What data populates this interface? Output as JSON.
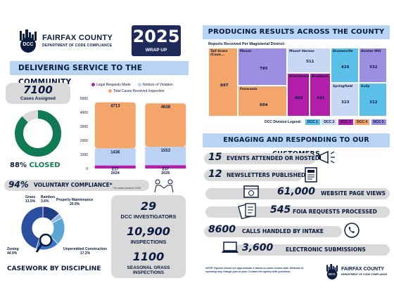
{
  "header": {
    "org_name": "FAIRFAX COUNTY",
    "org_sub": "DEPARTMENT OF CODE COMPLIANCE",
    "logo_text": "DCC",
    "year": "2025",
    "year_sub": "WRAP UP"
  },
  "left": {
    "banner_service": "DELIVERING SERVICE TO THE COMMUNITY",
    "cases_assigned_num": "7100",
    "cases_assigned_label": "Cases Assigned",
    "closed_pct": "88%",
    "closed_label": "CLOSED",
    "closed_fraction": 0.88,
    "voluntary_pct": "94%",
    "voluntary_label": "VOLUNTARY COMPLIANCE*",
    "voluntary_note": "* for cases closed in 2025",
    "casework_title": "CASEWORK BY DISCIPLINE",
    "investigators_num": "29",
    "investigators_label": "DCC INVESTIGATORS",
    "inspections_num": "10,900",
    "inspections_label": "INSPECTIONS",
    "seasonal_num": "1100",
    "seasonal_label": "SEASONAL GRASS INSPECTIONS"
  },
  "chart_data": [
    {
      "type": "bar",
      "categories": [
        "2024",
        "2025"
      ],
      "series": [
        {
          "name": "Legal Requests Made",
          "values": [
            217,
            237
          ],
          "color": "#b21ea8"
        },
        {
          "name": "Notices of Violation",
          "values": [
            1436,
            1553
          ],
          "color": "#bcd2f5"
        },
        {
          "name": "Total Cases Received Inspection",
          "values": [
            4713,
            4638
          ],
          "color": "#f4a56a"
        }
      ],
      "yticks": [
        "0",
        "1000",
        "2000",
        "3000",
        "4000",
        "5000"
      ],
      "ylim": [
        0,
        5000
      ]
    },
    {
      "type": "pie",
      "labels": [
        "Grass",
        "Bamboo",
        "Property Maintenance",
        "Unpermitted Construction",
        "Zoning"
      ],
      "percents": [
        "13.5%",
        "3.6%",
        "20.9%",
        "17.2%",
        "44.9%"
      ],
      "values": [
        13.5,
        3.6,
        20.9,
        17.2,
        44.9
      ],
      "colors": [
        "#1f3e86",
        "#8fb6e8",
        "#5aa7d6",
        "#3b74c4",
        "#2a4fa0"
      ]
    },
    {
      "type": "heatmap",
      "title": "Reports Received Per Magisterial District:",
      "cells": [
        {
          "name": "Mason",
          "value": "785",
          "color": "#9c8ee0"
        },
        {
          "name": "Mount Vernon",
          "value": "511",
          "color": "#c7d8f5"
        },
        {
          "name": "Franconia",
          "value": "604",
          "color": "#f4a56a"
        },
        {
          "name": "Providence",
          "value": "466",
          "color": "#b21ea8"
        },
        {
          "name": "Braddock",
          "value": "441",
          "color": "#b21ea8"
        },
        {
          "name": "Dranesville",
          "value": "426",
          "color": "#5bc0e8"
        },
        {
          "name": "Hunter Mill",
          "value": "332",
          "color": "#9c8ee0"
        },
        {
          "name": "Springfield",
          "value": "323",
          "color": "#c7d8f5"
        },
        {
          "name": "Sully",
          "value": "312",
          "color": "#5bc0e8"
        },
        {
          "name": "Tall Grass (Coun...",
          "value": "897",
          "color": "#f4a56a"
        }
      ],
      "legend_title": "DCC Division Legend:",
      "legend": [
        {
          "name": "DCC 1",
          "color": "#5bc0e8"
        },
        {
          "name": "DCC 2",
          "color": "#c7d8f5"
        },
        {
          "name": "DCC 3",
          "color": "#b21ea8"
        },
        {
          "name": "DCC 4",
          "color": "#f4a56a"
        },
        {
          "name": "DCC 5",
          "color": "#9c8ee0"
        }
      ]
    }
  ],
  "right": {
    "banner_results": "PRODUCING RESULTS ACROSS THE COUNTY",
    "banner_engaging": "ENGAGING AND RESPONDING TO OUR CUSTOMERS",
    "stats": [
      {
        "num": "15",
        "label": "EVENTS ATTENDED OR HOSTED",
        "icon": "megaphone-icon"
      },
      {
        "num": "12",
        "label": "NEWSLETTERS PUBLISHED",
        "icon": "newsletter-icon"
      },
      {
        "num": "61,000",
        "label": "WEBSITE PAGE VIEWS",
        "icon": "webpage-icon"
      },
      {
        "num": "545",
        "label": "FOIA REQUESTS PROCESSED",
        "icon": "documents-icon"
      },
      {
        "num": "8600",
        "label": "CALLS HANDLED BY INTAKE",
        "icon": "phone-icon"
      },
      {
        "num": "3,600",
        "label": "ELECTRONIC SUBMISSIONS",
        "icon": "laptop-icon"
      }
    ],
    "note": "NOTE: Figures shown are approximate & based on point-in-time data. Methods of reporting may change year-to-year. Contact the agency with questions.",
    "footer_org": "FAIRFAX COUNTY",
    "footer_sub": "DEPARTMENT OF CODE COMPLIANCE",
    "footer_logo": "DCC"
  }
}
